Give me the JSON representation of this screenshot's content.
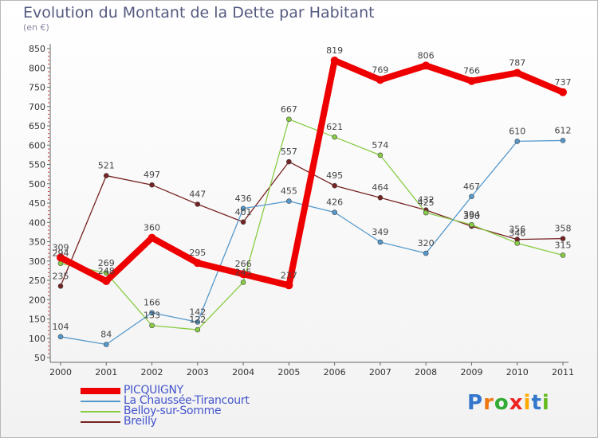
{
  "chart_data": {
    "type": "line",
    "title": "Evolution du Montant de la Dette par Habitant",
    "subtitle": "(en €)",
    "x": [
      "2000",
      "2001",
      "2002",
      "2003",
      "2004",
      "2005",
      "2006",
      "2007",
      "2008",
      "2009",
      "2010",
      "2011"
    ],
    "ylim": [
      50,
      850
    ],
    "yticks": [
      50,
      100,
      150,
      200,
      250,
      300,
      350,
      400,
      450,
      500,
      550,
      600,
      650,
      700,
      750,
      800,
      850
    ],
    "grid": false,
    "legend_position": "bottom-left",
    "series": [
      {
        "name": "PICQUIGNY",
        "color": "#ee0000",
        "values": [
          309,
          248,
          360,
          295,
          266,
          237,
          819,
          769,
          806,
          766,
          787,
          737
        ]
      },
      {
        "name": "La Chaussée-Tirancourt",
        "color": "#5599cc",
        "values": [
          104,
          84,
          166,
          142,
          436,
          455,
          426,
          349,
          320,
          467,
          610,
          612
        ]
      },
      {
        "name": "Belloy-sur-Somme",
        "color": "#88cc44",
        "values": [
          294,
          269,
          133,
          122,
          245,
          667,
          621,
          574,
          425,
          394,
          346,
          315
        ]
      },
      {
        "name": "Breilly",
        "color": "#772222",
        "values": [
          235,
          521,
          497,
          447,
          401,
          557,
          495,
          464,
          432,
          390,
          356,
          358
        ]
      }
    ]
  },
  "logo_text": "Proxiti"
}
